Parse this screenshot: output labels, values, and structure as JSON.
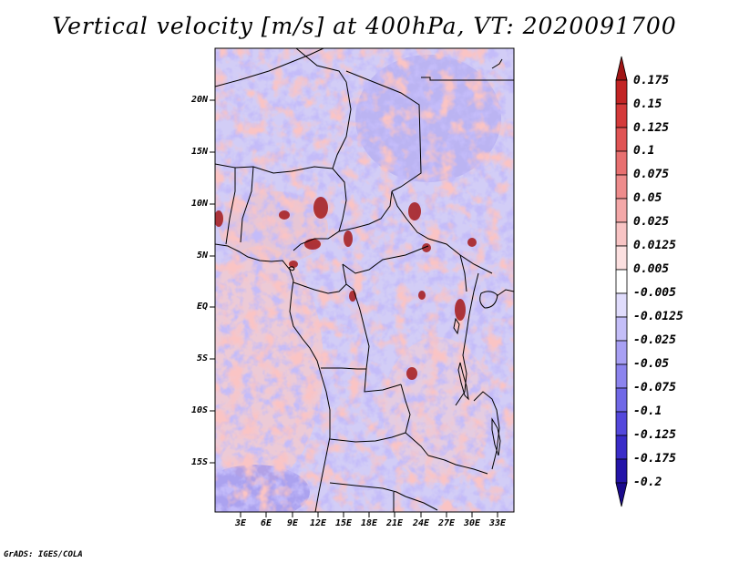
{
  "title": "Vertical velocity [m/s] at 400hPa, VT: 2020091700",
  "credit": "GrADS: IGES/COLA",
  "map": {
    "variable": "Vertical velocity",
    "units": "m/s",
    "level": "400hPa",
    "valid_time": "2020091700",
    "lat_ticks": [
      "20N",
      "15N",
      "10N",
      "5N",
      "EQ",
      "5S",
      "10S",
      "15S"
    ],
    "lon_ticks": [
      "3E",
      "6E",
      "9E",
      "12E",
      "15E",
      "18E",
      "21E",
      "24E",
      "27E",
      "30E",
      "33E"
    ]
  },
  "colorbar": {
    "labels": [
      "0.175",
      "0.15",
      "0.125",
      "0.1",
      "0.075",
      "0.05",
      "0.025",
      "0.0125",
      "0.005",
      "-0.005",
      "-0.0125",
      "-0.025",
      "-0.05",
      "-0.075",
      "-0.1",
      "-0.125",
      "-0.175",
      "-0.2"
    ],
    "colors": [
      "#a01616",
      "#c22424",
      "#d43a3a",
      "#e05454",
      "#e87070",
      "#ee8c8c",
      "#f4a8a8",
      "#f8c4c4",
      "#fce0e0",
      "#ffffff",
      "#e0dcfc",
      "#c4bef8",
      "#a8a0f4",
      "#8c84ee",
      "#7068e6",
      "#5448dc",
      "#3a2cc8",
      "#2414a8",
      "#1a0a8c"
    ]
  }
}
